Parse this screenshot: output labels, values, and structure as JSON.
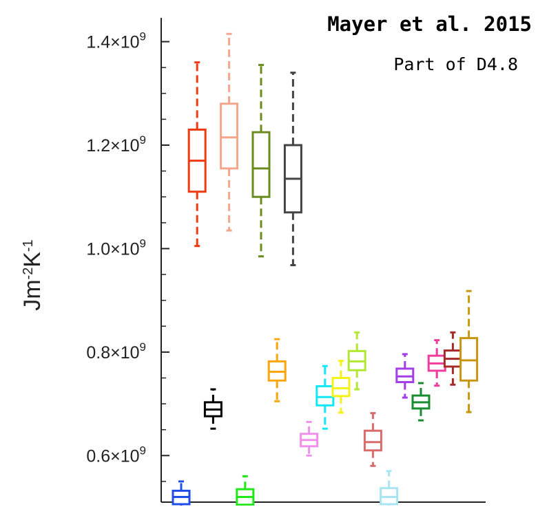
{
  "annotations": {
    "title": "Mayer et al. 2015",
    "subtitle": "Part of D4.8"
  },
  "chart_data": {
    "type": "box",
    "ylabel": "Jm-2K-1",
    "ylim": [
      0.51,
      1.43
    ],
    "yticks": [
      {
        "value": 0.6,
        "mantissa": "0.6",
        "base": "×10",
        "exp": "9"
      },
      {
        "value": 0.8,
        "mantissa": "0.8",
        "base": "×10",
        "exp": "9"
      },
      {
        "value": 1.0,
        "mantissa": "1.0",
        "base": "×10",
        "exp": "9"
      },
      {
        "value": 1.2,
        "mantissa": "1.2",
        "base": "×10",
        "exp": "9"
      },
      {
        "value": 1.4,
        "mantissa": "1.4",
        "base": "×10",
        "exp": "9"
      }
    ],
    "yunit_multiplier": 1000000000.0,
    "boxes": [
      {
        "color": "#1f4fe8",
        "min": 0.49,
        "q1": 0.506,
        "median": 0.52,
        "q3": 0.532,
        "max": 0.55
      },
      {
        "color": "#f03a12",
        "min": 1.005,
        "q1": 1.11,
        "median": 1.17,
        "q3": 1.23,
        "max": 1.36
      },
      {
        "color": "#000000",
        "min": 0.652,
        "q1": 0.676,
        "median": 0.689,
        "q3": 0.703,
        "max": 0.728
      },
      {
        "color": "#f4a58a",
        "min": 1.035,
        "q1": 1.155,
        "median": 1.215,
        "q3": 1.28,
        "max": 1.415
      },
      {
        "color": "#22e81a",
        "min": 0.48,
        "q1": 0.505,
        "median": 0.52,
        "q3": 0.535,
        "max": 0.56
      },
      {
        "color": "#6a8c1e",
        "min": 0.985,
        "q1": 1.1,
        "median": 1.155,
        "q3": 1.225,
        "max": 1.355
      },
      {
        "color": "#ffa50a",
        "min": 0.705,
        "q1": 0.745,
        "median": 0.762,
        "q3": 0.782,
        "max": 0.825
      },
      {
        "color": "#444444",
        "min": 0.968,
        "q1": 1.07,
        "median": 1.135,
        "q3": 1.2,
        "max": 1.34
      },
      {
        "color": "#f090ec",
        "min": 0.6,
        "q1": 0.618,
        "median": 0.63,
        "q3": 0.642,
        "max": 0.665
      },
      {
        "color": "#12e8f6",
        "min": 0.652,
        "q1": 0.697,
        "median": 0.713,
        "q3": 0.734,
        "max": 0.773
      },
      {
        "color": "#f4f21a",
        "min": 0.683,
        "q1": 0.715,
        "median": 0.73,
        "q3": 0.75,
        "max": 0.783
      },
      {
        "color": "#b2e834",
        "min": 0.728,
        "q1": 0.765,
        "median": 0.782,
        "q3": 0.802,
        "max": 0.838
      },
      {
        "color": "#d96b6b",
        "min": 0.58,
        "q1": 0.61,
        "median": 0.626,
        "q3": 0.648,
        "max": 0.682
      },
      {
        "color": "#a8e4f4",
        "min": 0.48,
        "q1": 0.506,
        "median": 0.52,
        "q3": 0.537,
        "max": 0.57
      },
      {
        "color": "#a43ee8",
        "min": 0.712,
        "q1": 0.742,
        "median": 0.753,
        "q3": 0.768,
        "max": 0.796
      },
      {
        "color": "#1a8c30",
        "min": 0.668,
        "q1": 0.691,
        "median": 0.703,
        "q3": 0.716,
        "max": 0.74
      },
      {
        "color": "#f03c9c",
        "min": 0.735,
        "q1": 0.764,
        "median": 0.778,
        "q3": 0.793,
        "max": 0.823
      },
      {
        "color": "#a52a2a",
        "min": 0.737,
        "q1": 0.772,
        "median": 0.787,
        "q3": 0.803,
        "max": 0.838
      },
      {
        "color": "#c8960e",
        "min": 0.684,
        "q1": 0.745,
        "median": 0.784,
        "q3": 0.827,
        "max": 0.918
      }
    ]
  }
}
